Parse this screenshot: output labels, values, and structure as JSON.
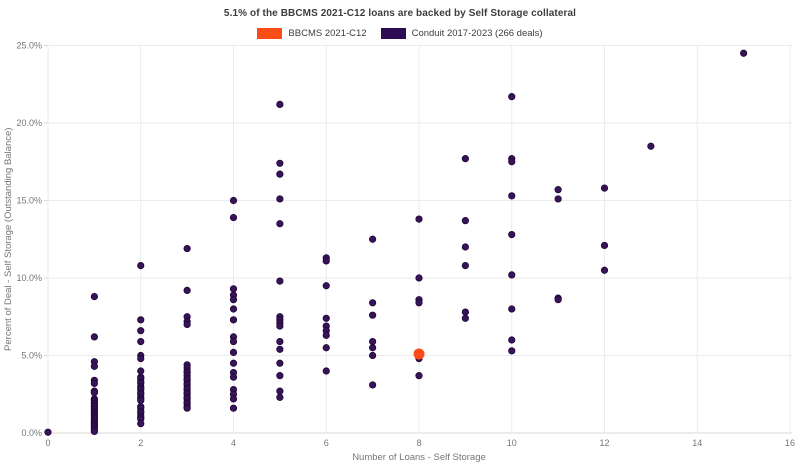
{
  "title": "5.1% of the BBCMS 2021-C12 loans are backed by Self Storage collateral",
  "legend": [
    {
      "label": "BBCMS 2021-C12",
      "color": "#fb4b17"
    },
    {
      "label": "Conduit 2017-2023 (266 deals)",
      "color": "#2e0b52"
    }
  ],
  "colors": {
    "grid": "#ebebeb",
    "axis_line": "#d8d8d8",
    "tick_text": "#757575",
    "axis_title_text": "#757575"
  },
  "chart_data": {
    "type": "scatter",
    "title": "5.1% of the BBCMS 2021-C12 loans are backed by Self Storage collateral",
    "xlabel": "Number of Loans - Self Storage",
    "ylabel": "Percent of Deal - Self Storage (Outstanding Balance)",
    "xlim": [
      0,
      16
    ],
    "ylim": [
      0,
      25
    ],
    "x_ticks": [
      0,
      2,
      4,
      6,
      8,
      10,
      12,
      14,
      16
    ],
    "x_tick_labels": [
      "0",
      "2",
      "4",
      "6",
      "8",
      "10",
      "12",
      "14",
      "16"
    ],
    "y_ticks": [
      0,
      5,
      10,
      15,
      20,
      25
    ],
    "y_tick_labels": [
      "0.0%",
      "5.0%",
      "10.0%",
      "15.0%",
      "20.0%",
      "25.0%"
    ],
    "grid": true,
    "legend_position": "top-center",
    "series": [
      {
        "name": "Conduit 2017-2023 (266 deals)",
        "color": "#371357",
        "stroke": "#20063a",
        "marker_radius": 3.2,
        "points": [
          [
            0,
            0.05
          ],
          [
            1,
            8.8
          ],
          [
            1,
            6.2
          ],
          [
            1,
            4.6
          ],
          [
            1,
            4.3
          ],
          [
            1,
            3.4
          ],
          [
            1,
            3.2
          ],
          [
            1,
            2.7
          ],
          [
            1,
            2.6
          ],
          [
            1,
            2.2
          ],
          [
            1,
            2.1
          ],
          [
            1,
            2.0
          ],
          [
            1,
            1.9
          ],
          [
            1,
            1.8
          ],
          [
            1,
            1.7
          ],
          [
            1,
            1.6
          ],
          [
            1,
            1.5
          ],
          [
            1,
            1.4
          ],
          [
            1,
            1.3
          ],
          [
            1,
            1.2
          ],
          [
            1,
            1.1
          ],
          [
            1,
            1.0
          ],
          [
            1,
            0.9
          ],
          [
            1,
            0.8
          ],
          [
            1,
            0.7
          ],
          [
            1,
            0.6
          ],
          [
            1,
            0.5
          ],
          [
            1,
            0.4
          ],
          [
            1,
            0.3
          ],
          [
            1,
            0.2
          ],
          [
            1,
            0.1
          ],
          [
            2,
            10.8
          ],
          [
            2,
            7.3
          ],
          [
            2,
            6.6
          ],
          [
            2,
            5.9
          ],
          [
            2,
            5.0
          ],
          [
            2,
            4.8
          ],
          [
            2,
            4.0
          ],
          [
            2,
            3.6
          ],
          [
            2,
            3.5
          ],
          [
            2,
            3.3
          ],
          [
            2,
            3.2
          ],
          [
            2,
            3.0
          ],
          [
            2,
            2.9
          ],
          [
            2,
            2.8
          ],
          [
            2,
            2.6
          ],
          [
            2,
            2.5
          ],
          [
            2,
            2.3
          ],
          [
            2,
            2.2
          ],
          [
            2,
            2.1
          ],
          [
            2,
            1.7
          ],
          [
            2,
            1.6
          ],
          [
            2,
            1.4
          ],
          [
            2,
            1.3
          ],
          [
            2,
            1.1
          ],
          [
            2,
            1.0
          ],
          [
            2,
            0.9
          ],
          [
            2,
            0.6
          ],
          [
            3,
            11.9
          ],
          [
            3,
            9.2
          ],
          [
            3,
            7.5
          ],
          [
            3,
            7.2
          ],
          [
            3,
            7.0
          ],
          [
            3,
            4.4
          ],
          [
            3,
            4.2
          ],
          [
            3,
            4.0
          ],
          [
            3,
            3.9
          ],
          [
            3,
            3.7
          ],
          [
            3,
            3.5
          ],
          [
            3,
            3.4
          ],
          [
            3,
            3.2
          ],
          [
            3,
            3.1
          ],
          [
            3,
            2.9
          ],
          [
            3,
            2.8
          ],
          [
            3,
            2.6
          ],
          [
            3,
            2.5
          ],
          [
            3,
            2.3
          ],
          [
            3,
            2.2
          ],
          [
            3,
            2.0
          ],
          [
            3,
            1.9
          ],
          [
            3,
            1.7
          ],
          [
            3,
            1.6
          ],
          [
            4,
            15.0
          ],
          [
            4,
            13.9
          ],
          [
            4,
            9.3
          ],
          [
            4,
            8.9
          ],
          [
            4,
            8.6
          ],
          [
            4,
            8.0
          ],
          [
            4,
            7.3
          ],
          [
            4,
            6.2
          ],
          [
            4,
            5.9
          ],
          [
            4,
            5.2
          ],
          [
            4,
            4.5
          ],
          [
            4,
            3.9
          ],
          [
            4,
            3.6
          ],
          [
            4,
            2.8
          ],
          [
            4,
            2.5
          ],
          [
            4,
            2.2
          ],
          [
            4,
            1.6
          ],
          [
            5,
            21.2
          ],
          [
            5,
            17.4
          ],
          [
            5,
            16.7
          ],
          [
            5,
            15.1
          ],
          [
            5,
            13.5
          ],
          [
            5,
            9.8
          ],
          [
            5,
            7.5
          ],
          [
            5,
            7.3
          ],
          [
            5,
            7.1
          ],
          [
            5,
            6.9
          ],
          [
            5,
            5.9
          ],
          [
            5,
            5.4
          ],
          [
            5,
            4.5
          ],
          [
            5,
            3.7
          ],
          [
            5,
            2.7
          ],
          [
            5,
            2.3
          ],
          [
            6,
            11.3
          ],
          [
            6,
            11.1
          ],
          [
            6,
            9.5
          ],
          [
            6,
            7.4
          ],
          [
            6,
            6.9
          ],
          [
            6,
            6.6
          ],
          [
            6,
            6.3
          ],
          [
            6,
            5.5
          ],
          [
            6,
            4.0
          ],
          [
            7,
            12.5
          ],
          [
            7,
            8.4
          ],
          [
            7,
            7.6
          ],
          [
            7,
            5.9
          ],
          [
            7,
            5.5
          ],
          [
            7,
            5.0
          ],
          [
            7,
            3.1
          ],
          [
            8,
            13.8
          ],
          [
            8,
            10.0
          ],
          [
            8,
            8.6
          ],
          [
            8,
            8.4
          ],
          [
            8,
            4.8
          ],
          [
            8,
            3.7
          ],
          [
            9,
            17.7
          ],
          [
            9,
            13.7
          ],
          [
            9,
            12.0
          ],
          [
            9,
            10.8
          ],
          [
            9,
            7.8
          ],
          [
            9,
            7.4
          ],
          [
            10,
            21.7
          ],
          [
            10,
            17.7
          ],
          [
            10,
            17.5
          ],
          [
            10,
            15.3
          ],
          [
            10,
            12.8
          ],
          [
            10,
            10.2
          ],
          [
            10,
            8.0
          ],
          [
            10,
            6.0
          ],
          [
            10,
            5.3
          ],
          [
            11,
            15.7
          ],
          [
            11,
            15.1
          ],
          [
            11,
            8.7
          ],
          [
            11,
            8.6
          ],
          [
            12,
            15.8
          ],
          [
            12,
            12.1
          ],
          [
            12,
            10.5
          ],
          [
            13,
            18.5
          ],
          [
            15,
            24.5
          ]
        ]
      },
      {
        "name": "BBCMS 2021-C12",
        "color": "#fb4b17",
        "stroke": "none",
        "marker_radius": 5.5,
        "points": [
          [
            8,
            5.1
          ]
        ]
      }
    ]
  }
}
